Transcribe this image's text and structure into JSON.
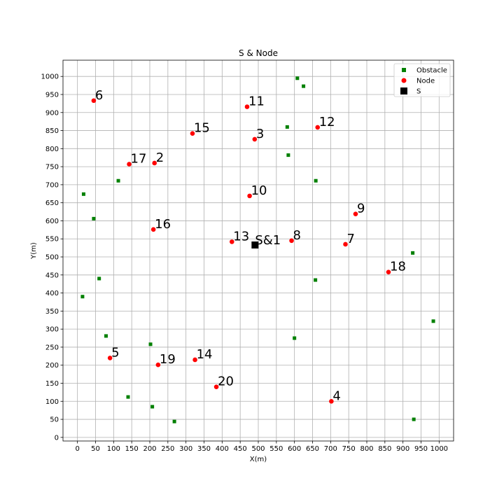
{
  "chart_data": {
    "type": "scatter",
    "title": "S & Node",
    "xlabel": "X(m)",
    "ylabel": "Y(m)",
    "xlim": [
      -40,
      1040
    ],
    "ylim": [
      -10,
      1045
    ],
    "xticks": [
      0,
      50,
      100,
      150,
      200,
      250,
      300,
      350,
      400,
      450,
      500,
      550,
      600,
      650,
      700,
      750,
      800,
      850,
      900,
      950,
      1000
    ],
    "yticks": [
      0,
      50,
      100,
      150,
      200,
      250,
      300,
      350,
      400,
      450,
      500,
      550,
      600,
      650,
      700,
      750,
      800,
      850,
      900,
      950,
      1000
    ],
    "grid": true,
    "legend_position": "top-right",
    "colors": {
      "obstacle": "#008000",
      "node": "#ff0000",
      "s": "#000000"
    },
    "series": [
      {
        "name": "Obstacle",
        "marker": "square",
        "points": [
          {
            "x": 608,
            "y": 995
          },
          {
            "x": 625,
            "y": 973
          },
          {
            "x": 580,
            "y": 860
          },
          {
            "x": 583,
            "y": 782
          },
          {
            "x": 659,
            "y": 711
          },
          {
            "x": 113,
            "y": 711
          },
          {
            "x": 17,
            "y": 674
          },
          {
            "x": 45,
            "y": 606
          },
          {
            "x": 927,
            "y": 511
          },
          {
            "x": 60,
            "y": 440
          },
          {
            "x": 658,
            "y": 436
          },
          {
            "x": 14,
            "y": 390
          },
          {
            "x": 984,
            "y": 322
          },
          {
            "x": 79,
            "y": 281
          },
          {
            "x": 600,
            "y": 275
          },
          {
            "x": 202,
            "y": 258
          },
          {
            "x": 140,
            "y": 112
          },
          {
            "x": 207,
            "y": 85
          },
          {
            "x": 268,
            "y": 44
          },
          {
            "x": 930,
            "y": 50
          }
        ]
      },
      {
        "name": "Node",
        "marker": "circle",
        "points": [
          {
            "x": 491,
            "y": 533,
            "label": "1"
          },
          {
            "x": 213,
            "y": 760,
            "label": "2"
          },
          {
            "x": 490,
            "y": 826,
            "label": "3"
          },
          {
            "x": 702,
            "y": 100,
            "label": "4"
          },
          {
            "x": 90,
            "y": 220,
            "label": "5"
          },
          {
            "x": 45,
            "y": 933,
            "label": "6"
          },
          {
            "x": 741,
            "y": 535,
            "label": "7"
          },
          {
            "x": 592,
            "y": 545,
            "label": "8"
          },
          {
            "x": 769,
            "y": 619,
            "label": "9"
          },
          {
            "x": 476,
            "y": 669,
            "label": "10"
          },
          {
            "x": 469,
            "y": 916,
            "label": "11"
          },
          {
            "x": 664,
            "y": 859,
            "label": "12"
          },
          {
            "x": 427,
            "y": 542,
            "label": "13"
          },
          {
            "x": 325,
            "y": 215,
            "label": "14"
          },
          {
            "x": 318,
            "y": 842,
            "label": "15"
          },
          {
            "x": 210,
            "y": 576,
            "label": "16"
          },
          {
            "x": 143,
            "y": 757,
            "label": "17"
          },
          {
            "x": 860,
            "y": 458,
            "label": "18"
          },
          {
            "x": 223,
            "y": 201,
            "label": "19"
          },
          {
            "x": 384,
            "y": 140,
            "label": "20"
          }
        ]
      },
      {
        "name": "S",
        "marker": "square",
        "points": [
          {
            "x": 491,
            "y": 533,
            "label": "S&1"
          }
        ]
      }
    ]
  }
}
